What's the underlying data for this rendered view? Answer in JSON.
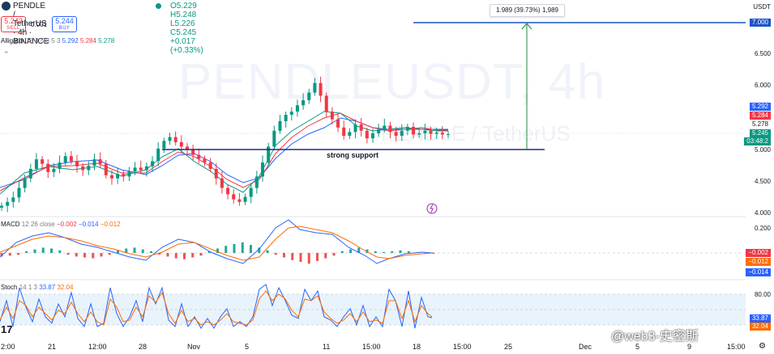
{
  "header": {
    "symbol": "PENDLE / TetherUS · 4h · BINANCE",
    "open": "O5.229",
    "high": "H5.248",
    "low": "L5.226",
    "close": "C5.245",
    "change": "+0.017 (+0.33%)"
  },
  "trade": {
    "sell_price": "5.243",
    "sell_label": "SELL",
    "spread": "0.001",
    "buy_price": "5.244",
    "buy_label": "BUY"
  },
  "indicators": {
    "alligator": {
      "label": "Alligator",
      "params": "13 8 5 8 5 3",
      "jaw": "5.292",
      "teeth": "5.284",
      "lips": "5.278"
    },
    "macd": {
      "label": "MACD",
      "params": "12 26 close",
      "hist": "−0.002",
      "macd": "−0.014",
      "signal": "−0.012"
    },
    "stoch": {
      "label": "Stoch",
      "params": "14 1 3",
      "k": "33.87",
      "d": "32.04"
    }
  },
  "watermark": {
    "title": "PENDLEUSDT, 4h",
    "subtitle": "PENDLE / TetherUS"
  },
  "annotations": {
    "support_label": "strong support",
    "measure_tooltip": "1.989 (39.73%) 1,989"
  },
  "price_axis": {
    "currency": "USDT",
    "labels": [
      "7.000",
      "6.500",
      "6.000",
      "5.500",
      "5.000",
      "4.500",
      "4.000"
    ],
    "tags": {
      "jaw": "5.292",
      "teeth": "5.284",
      "lips": "5.278",
      "last": "5.245",
      "countdown": "03:48:2"
    },
    "target_tag": "7.000"
  },
  "macd_axis": {
    "labels": [
      "0.200"
    ],
    "tags": {
      "hist": "−0.002",
      "signal": "−0.012",
      "macd": "−0.014"
    }
  },
  "stoch_axis": {
    "labels": [
      "80.00"
    ],
    "tags": {
      "k": "33.87",
      "d": "32.04"
    }
  },
  "time_axis": {
    "labels": [
      "2:00",
      "21",
      "12:00",
      "28",
      "Nov",
      "5",
      "11",
      "15:00",
      "18",
      "15:00",
      "25",
      "Dec",
      "5",
      "9",
      "15:00"
    ]
  },
  "overlay": {
    "copyright": "@web3-史密斯"
  },
  "colors": {
    "up": "#089981",
    "down": "#f23645",
    "jaw": "#2962ff",
    "teeth": "#f23645",
    "lips": "#089981",
    "macd": "#2962ff",
    "signal": "#ff6d00",
    "support": "#1e2a8a",
    "target": "#1e53c7",
    "measure": "#1b8a3e"
  }
}
